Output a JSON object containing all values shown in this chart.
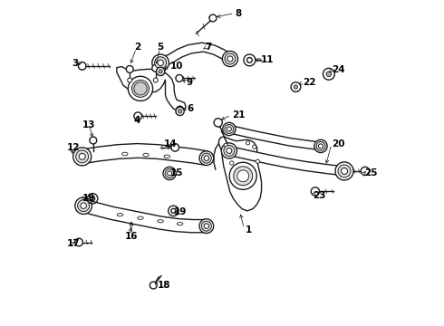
{
  "background_color": "#ffffff",
  "dark": "#1a1a1a",
  "lw": 1.0,
  "labels": {
    "1": [
      0.57,
      0.29,
      "left"
    ],
    "2": [
      0.228,
      0.855,
      "left"
    ],
    "3": [
      0.048,
      0.808,
      "left"
    ],
    "4": [
      0.228,
      0.628,
      "left"
    ],
    "5": [
      0.298,
      0.858,
      "left"
    ],
    "6": [
      0.39,
      0.668,
      "left"
    ],
    "7": [
      0.448,
      0.858,
      "left"
    ],
    "8": [
      0.538,
      0.965,
      "left"
    ],
    "9": [
      0.388,
      0.748,
      "left"
    ],
    "10": [
      0.338,
      0.798,
      "left"
    ],
    "11": [
      0.618,
      0.818,
      "left"
    ],
    "12": [
      0.035,
      0.548,
      "left"
    ],
    "13": [
      0.068,
      0.618,
      "left"
    ],
    "14": [
      0.318,
      0.558,
      "left"
    ],
    "15": [
      0.338,
      0.468,
      "left"
    ],
    "16": [
      0.198,
      0.268,
      "left"
    ],
    "17": [
      0.038,
      0.248,
      "left"
    ],
    "18": [
      0.298,
      0.118,
      "left"
    ],
    "19a": [
      0.098,
      0.388,
      "left"
    ],
    "19b": [
      0.348,
      0.348,
      "left"
    ],
    "20": [
      0.838,
      0.558,
      "left"
    ],
    "21": [
      0.528,
      0.648,
      "left"
    ],
    "22": [
      0.748,
      0.748,
      "left"
    ],
    "23": [
      0.778,
      0.398,
      "left"
    ],
    "24": [
      0.838,
      0.788,
      "left"
    ],
    "25": [
      0.938,
      0.468,
      "left"
    ]
  }
}
